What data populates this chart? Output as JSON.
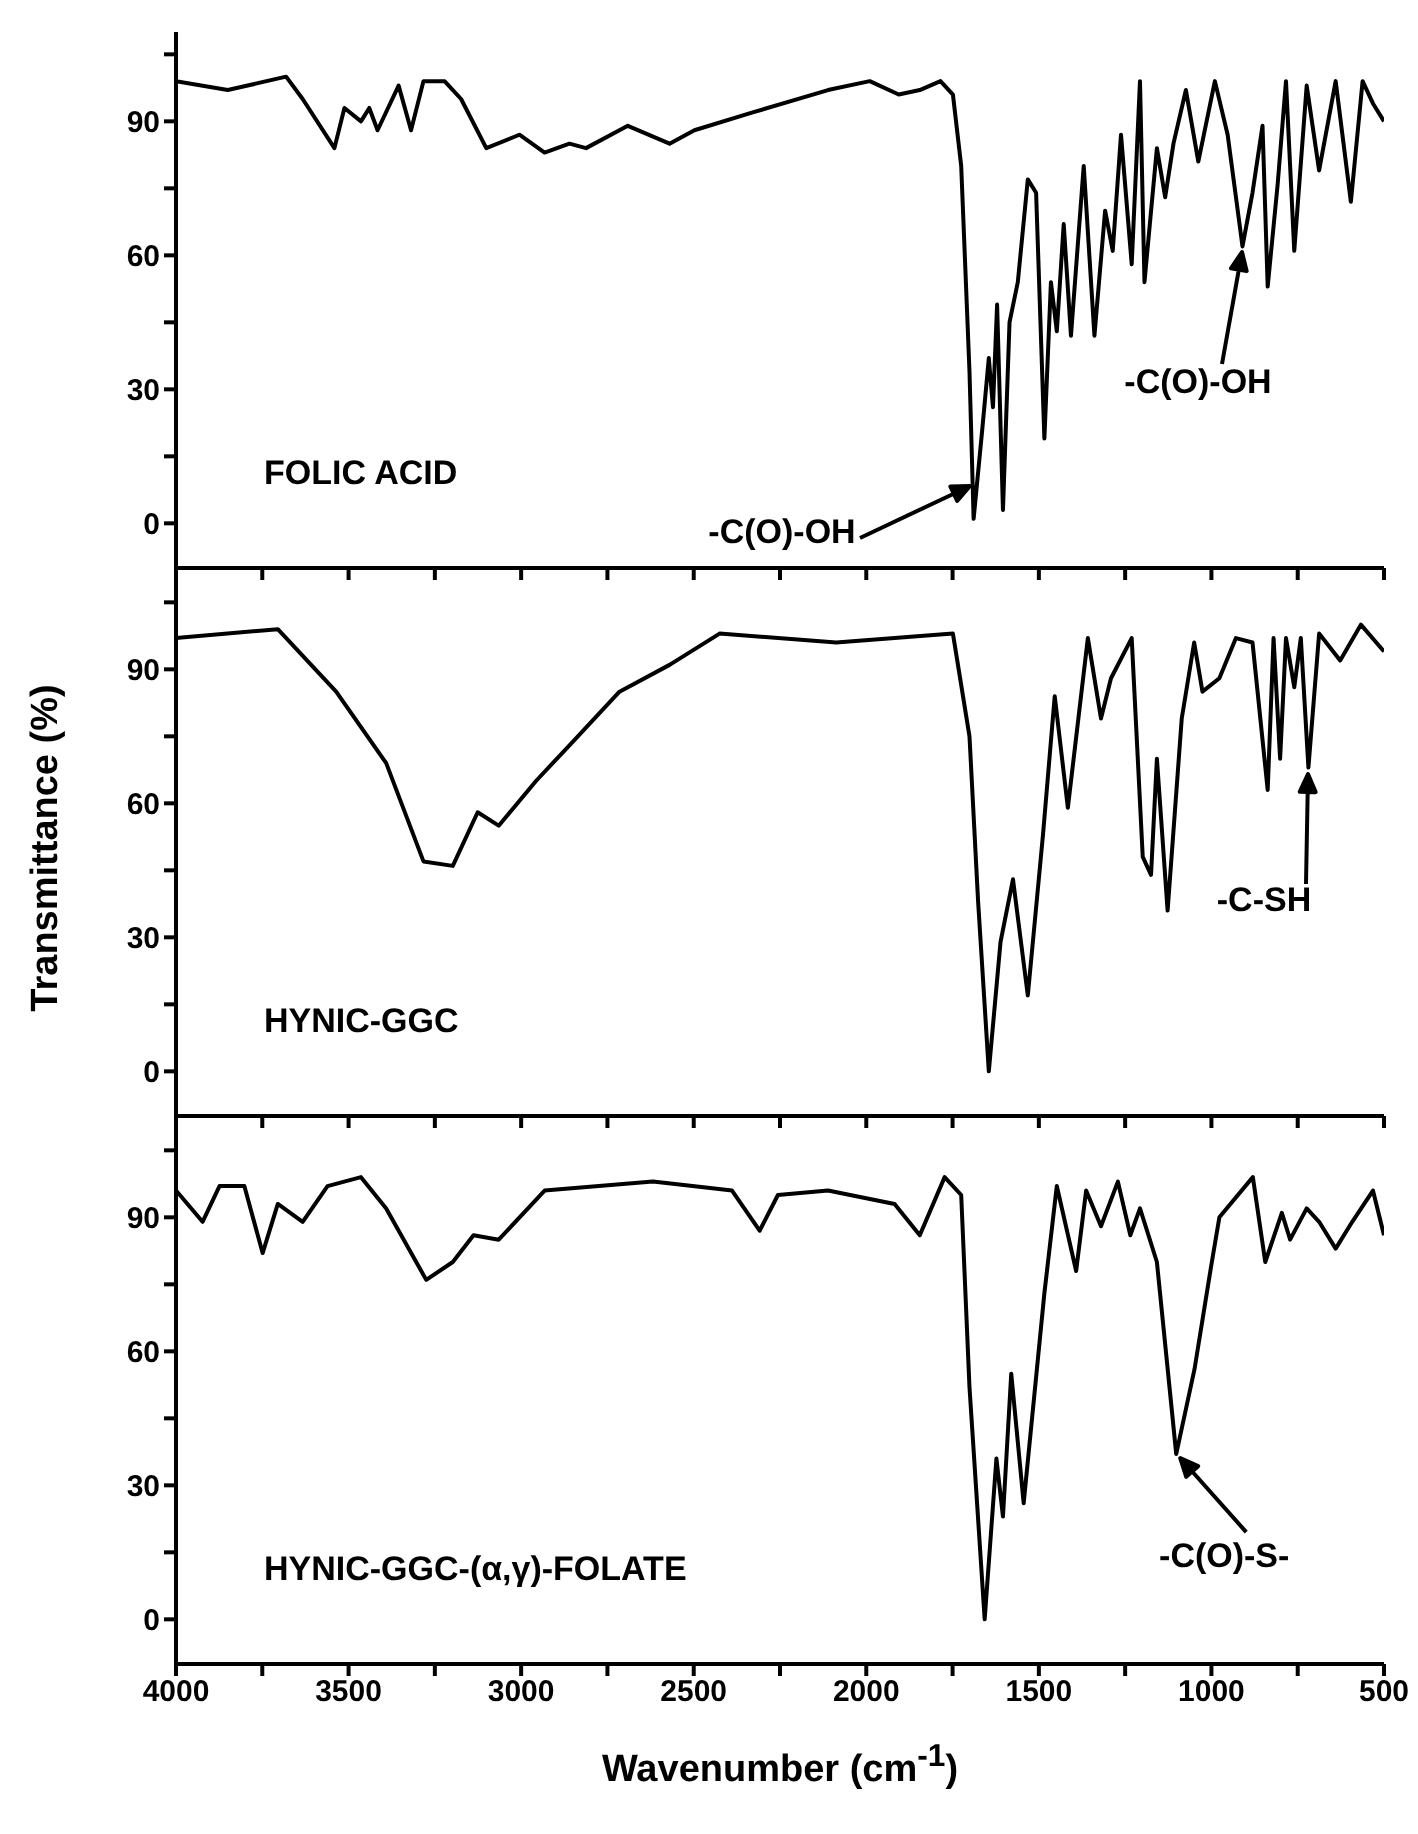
{
  "chart_data": [
    {
      "type": "line",
      "xlim": [
        4000,
        500
      ],
      "xticks": [
        4000,
        {
          "value": 3750,
          "label": null
        },
        3500,
        {
          "value": 3250,
          "label": null
        },
        3000,
        {
          "value": 2750,
          "label": null
        },
        2500,
        {
          "value": 2250,
          "label": null
        },
        2000,
        {
          "value": 1750,
          "label": null
        },
        1500,
        {
          "value": 1250,
          "label": null
        },
        1000,
        {
          "value": 750,
          "label": null
        },
        500
      ],
      "ylim": [
        -10,
        110
      ],
      "yticks": [
        0,
        {
          "value": 15,
          "label": null
        },
        30,
        {
          "value": 45,
          "label": null
        },
        60,
        {
          "value": 75,
          "label": null
        },
        90,
        {
          "value": 105,
          "label": null
        }
      ],
      "tick_labels": "y",
      "series": [
        {
          "color": "#000000",
          "x": [
            4000,
            3850,
            3681,
            3633,
            3541,
            3512,
            3464,
            3440,
            3416,
            3355,
            3319,
            3283,
            3222,
            3174,
            3101,
            3005,
            2932,
            2860,
            2812,
            2691,
            2570,
            2498,
            2329,
            2111,
            1990,
            1906,
            1845,
            1785,
            1749,
            1725,
            1701,
            1689,
            1664,
            1645,
            1633,
            1621,
            1604,
            1585,
            1561,
            1532,
            1508,
            1484,
            1465,
            1448,
            1428,
            1407,
            1370,
            1339,
            1308,
            1286,
            1262,
            1231,
            1207,
            1194,
            1158,
            1134,
            1110,
            1074,
            1038,
            990,
            953,
            910,
            881,
            852,
            837,
            808,
            784,
            760,
            724,
            688,
            640,
            596,
            562,
            532,
            500
          ],
          "values": [
            99,
            97,
            100,
            95,
            84,
            93,
            90,
            93,
            88,
            98,
            88,
            99,
            99,
            95,
            84,
            87,
            83,
            85,
            84,
            89,
            85,
            88,
            92,
            97,
            99,
            96,
            97,
            99,
            96,
            80,
            34,
            1,
            21,
            37,
            26,
            49,
            3,
            45,
            54,
            77,
            74,
            19,
            54,
            43,
            67,
            42,
            80,
            42,
            70,
            61,
            87,
            58,
            99,
            54,
            84,
            73,
            85,
            97,
            81,
            99,
            87,
            62,
            74,
            89,
            53,
            76,
            99,
            61,
            98,
            79,
            99,
            72,
            99,
            94,
            90
          ]
        }
      ],
      "annotations": [
        "FOLIC ACID",
        "-C(O)-OH",
        "-C(O)-OH"
      ]
    },
    {
      "type": "line",
      "xlim": [
        4000,
        500
      ],
      "xticks": [
        4000,
        {
          "value": 3750,
          "label": null
        },
        3500,
        {
          "value": 3250,
          "label": null
        },
        3000,
        {
          "value": 2750,
          "label": null
        },
        2500,
        {
          "value": 2250,
          "label": null
        },
        2000,
        {
          "value": 1750,
          "label": null
        },
        1500,
        {
          "value": 1250,
          "label": null
        },
        1000,
        {
          "value": 750,
          "label": null
        },
        500
      ],
      "ylim": [
        -10,
        110
      ],
      "yticks": [
        0,
        {
          "value": 15,
          "label": null
        },
        30,
        {
          "value": 45,
          "label": null
        },
        60,
        {
          "value": 75,
          "label": null
        },
        90,
        {
          "value": 105,
          "label": null
        }
      ],
      "tick_labels": "y",
      "ylabel": "Transmittance (%)",
      "series": [
        {
          "color": "#000000",
          "x": [
            4000,
            3705,
            3536,
            3391,
            3283,
            3198,
            3126,
            3065,
            2957,
            2860,
            2715,
            2570,
            2425,
            2087,
            1749,
            1701,
            1676,
            1645,
            1611,
            1575,
            1532,
            1488,
            1454,
            1416,
            1358,
            1320,
            1291,
            1231,
            1199,
            1175,
            1158,
            1127,
            1086,
            1050,
            1026,
            977,
            929,
            881,
            837,
            820,
            801,
            784,
            760,
            741,
            719,
            688,
            627,
            567,
            500
          ],
          "values": [
            97,
            99,
            85,
            69,
            47,
            46,
            58,
            55,
            65,
            73,
            85,
            91,
            98,
            96,
            98,
            75,
            38,
            0,
            29,
            43,
            17,
            53,
            84,
            59,
            97,
            79,
            88,
            97,
            48,
            44,
            70,
            36,
            79,
            96,
            85,
            88,
            97,
            96,
            63,
            97,
            70,
            97,
            86,
            97,
            68,
            98,
            92,
            100,
            94
          ]
        }
      ],
      "annotations": [
        "HYNIC-GGC",
        "-C-SH"
      ]
    },
    {
      "type": "line",
      "xlim": [
        4000,
        500
      ],
      "xticks": [
        4000,
        {
          "value": 3750,
          "label": null
        },
        3500,
        {
          "value": 3250,
          "label": null
        },
        3000,
        {
          "value": 2750,
          "label": null
        },
        2500,
        {
          "value": 2250,
          "label": null
        },
        2000,
        {
          "value": 1750,
          "label": null
        },
        1500,
        {
          "value": 1250,
          "label": null
        },
        1000,
        {
          "value": 750,
          "label": null
        },
        500
      ],
      "ylim": [
        -10,
        110
      ],
      "yticks": [
        0,
        {
          "value": 15,
          "label": null
        },
        30,
        {
          "value": 45,
          "label": null
        },
        60,
        {
          "value": 75,
          "label": null
        },
        90,
        {
          "value": 105,
          "label": null
        }
      ],
      "xlabel": "Wavenumber (cm$^{-1}$)",
      "series": [
        {
          "color": "#000000",
          "x": [
            4000,
            3923,
            3874,
            3802,
            3749,
            3705,
            3633,
            3561,
            3464,
            3391,
            3275,
            3198,
            3138,
            3065,
            2932,
            2618,
            2389,
            2309,
            2256,
            2111,
            1918,
            1845,
            1773,
            1725,
            1701,
            1657,
            1623,
            1604,
            1580,
            1544,
            1484,
            1448,
            1392,
            1363,
            1320,
            1271,
            1235,
            1207,
            1158,
            1102,
            1049,
            1001,
            977,
            880,
            844,
            796,
            772,
            724,
            688,
            640,
            592,
            532,
            500
          ],
          "values": [
            96,
            89,
            97,
            97,
            82,
            93,
            89,
            97,
            99,
            92,
            76,
            80,
            86,
            85,
            96,
            98,
            96,
            87,
            95,
            96,
            93,
            86,
            99,
            95,
            52,
            0,
            36,
            23,
            55,
            26,
            73,
            97,
            78,
            96,
            88,
            98,
            86,
            92,
            80,
            37,
            56,
            79,
            90,
            99,
            80,
            91,
            85,
            92,
            89,
            83,
            89,
            96,
            86
          ]
        }
      ],
      "annotations": [
        "HYNIC-GGC-(α,γ)-FOLATE",
        {
          "text": "-C(O)-S-",
          "x": 1102,
          "y": 37
        }
      ]
    }
  ]
}
